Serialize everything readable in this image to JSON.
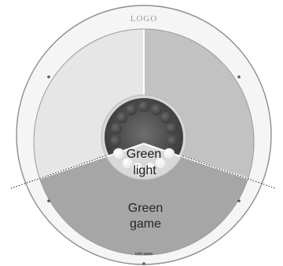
{
  "header": {
    "logo": "LOGO"
  },
  "center": {
    "label_line1": "Green",
    "label_line2": "light"
  },
  "segments": {
    "bottom_label_line1": "Green",
    "bottom_label_line2": "game"
  },
  "footer": {
    "info": "info www"
  },
  "colors": {
    "outer_ring": "#f4f4f4",
    "ring_stroke": "#9a9a9a",
    "segment_left": "#e7e7e7",
    "segment_right": "#c1c1c1",
    "segment_bottom": "#a5a5a5",
    "hub_dark": "#4a4a4a",
    "hub_light": "#d0d0d0",
    "lights_on": "#ffffff",
    "lights_off": "#5a5a5a"
  }
}
